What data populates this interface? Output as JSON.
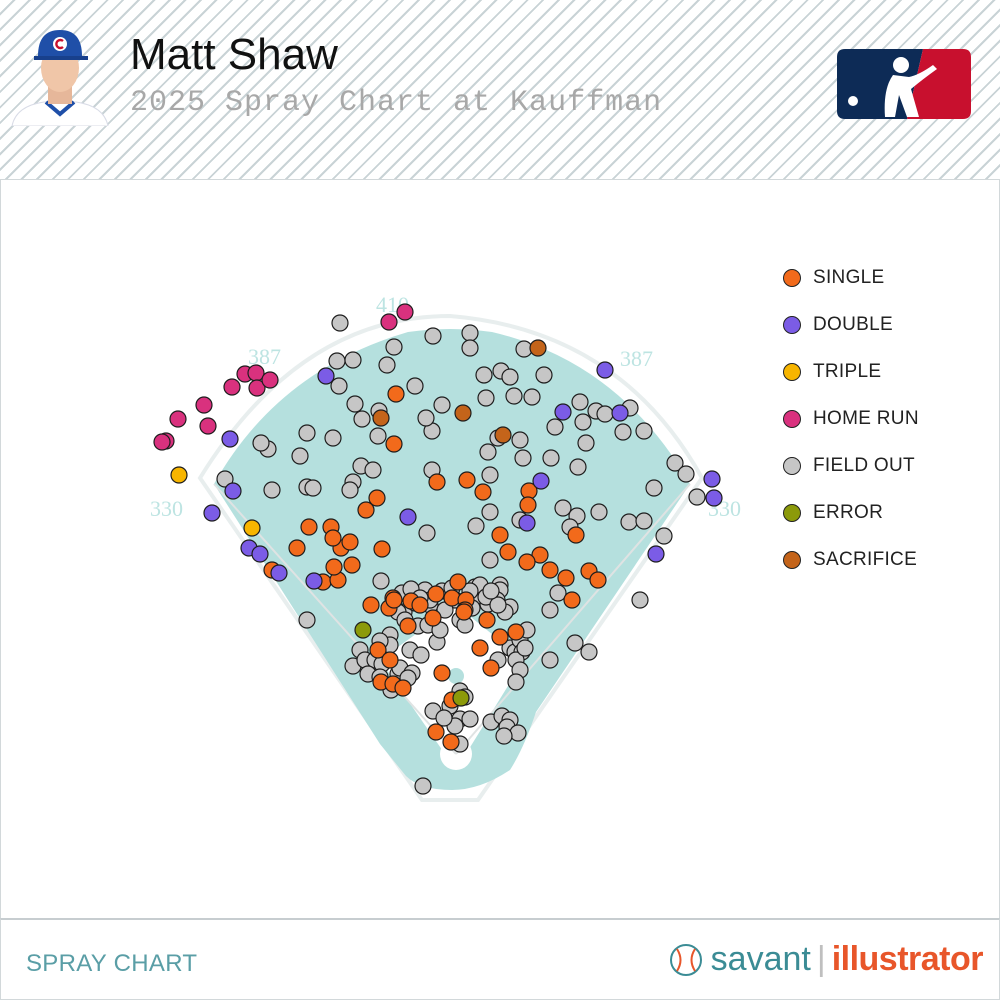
{
  "header": {
    "player_name": "Matt Shaw",
    "subtitle": "2025 Spray Chart at Kauffman"
  },
  "footer": {
    "label": "SPRAY CHART",
    "brand_left": "savant",
    "brand_right": "illustrator"
  },
  "chart_data": {
    "type": "scatter",
    "title": "Matt Shaw",
    "subtitle": "2025 Spray Chart at Kauffman",
    "field_distances": {
      "left_line": "330",
      "left_center": "387",
      "center": "410",
      "right_center": "387",
      "right_line": "330"
    },
    "legend_placement": "right",
    "colors": {
      "SINGLE": "#f26a1b",
      "DOUBLE": "#7b5ce6",
      "TRIPLE": "#f7b500",
      "HOME RUN": "#d9317e",
      "FIELD OUT": "#c6c6c6",
      "ERROR": "#8c9a0a",
      "SACRIFICE": "#c4641a",
      "field": "#b5e0de"
    },
    "legend": [
      "SINGLE",
      "DOUBLE",
      "TRIPLE",
      "HOME RUN",
      "FIELD OUT",
      "ERROR",
      "SACRIFICE"
    ],
    "points": {
      "SINGLE": [
        [
          297,
          548
        ],
        [
          309,
          527
        ],
        [
          331,
          527
        ],
        [
          341,
          548
        ],
        [
          333,
          538
        ],
        [
          350,
          542
        ],
        [
          323,
          582
        ],
        [
          338,
          580
        ],
        [
          334,
          567
        ],
        [
          352,
          565
        ],
        [
          382,
          549
        ],
        [
          366,
          510
        ],
        [
          377,
          498
        ],
        [
          396,
          394
        ],
        [
          394,
          444
        ],
        [
          437,
          482
        ],
        [
          467,
          480
        ],
        [
          483,
          492
        ],
        [
          529,
          491
        ],
        [
          528,
          505
        ],
        [
          500,
          535
        ],
        [
          508,
          552
        ],
        [
          540,
          555
        ],
        [
          550,
          570
        ],
        [
          527,
          562
        ],
        [
          566,
          578
        ],
        [
          576,
          535
        ],
        [
          589,
          571
        ],
        [
          598,
          580
        ],
        [
          572,
          600
        ],
        [
          458,
          582
        ],
        [
          436,
          594
        ],
        [
          393,
          598
        ],
        [
          389,
          608
        ],
        [
          411,
          601
        ],
        [
          452,
          598
        ],
        [
          466,
          600
        ],
        [
          465,
          610
        ],
        [
          487,
          620
        ],
        [
          516,
          632
        ],
        [
          500,
          637
        ],
        [
          480,
          648
        ],
        [
          491,
          668
        ],
        [
          464,
          612
        ],
        [
          433,
          618
        ],
        [
          442,
          673
        ],
        [
          408,
          626
        ],
        [
          378,
          650
        ],
        [
          390,
          660
        ],
        [
          381,
          682
        ],
        [
          393,
          684
        ],
        [
          403,
          688
        ],
        [
          452,
          700
        ],
        [
          436,
          732
        ],
        [
          451,
          742
        ],
        [
          371,
          605
        ],
        [
          272,
          570
        ],
        [
          394,
          600
        ],
        [
          420,
          605
        ]
      ],
      "DOUBLE": [
        [
          326,
          376
        ],
        [
          230,
          439
        ],
        [
          233,
          491
        ],
        [
          212,
          513
        ],
        [
          249,
          548
        ],
        [
          260,
          554
        ],
        [
          279,
          573
        ],
        [
          314,
          581
        ],
        [
          408,
          517
        ],
        [
          527,
          523
        ],
        [
          541,
          481
        ],
        [
          563,
          412
        ],
        [
          620,
          413
        ],
        [
          605,
          370
        ],
        [
          712,
          479
        ],
        [
          714,
          498
        ],
        [
          656,
          554
        ]
      ],
      "TRIPLE": [
        [
          179,
          475
        ],
        [
          252,
          528
        ]
      ],
      "HOME RUN": [
        [
          389,
          322
        ],
        [
          405,
          312
        ],
        [
          232,
          387
        ],
        [
          245,
          374
        ],
        [
          256,
          373
        ],
        [
          257,
          388
        ],
        [
          270,
          380
        ],
        [
          204,
          405
        ],
        [
          178,
          419
        ],
        [
          208,
          426
        ],
        [
          166,
          441
        ],
        [
          162,
          442
        ]
      ],
      "FIELD OUT": [
        [
          340,
          323
        ],
        [
          433,
          336
        ],
        [
          470,
          333
        ],
        [
          470,
          348
        ],
        [
          394,
          347
        ],
        [
          337,
          361
        ],
        [
          353,
          360
        ],
        [
          387,
          365
        ],
        [
          339,
          386
        ],
        [
          355,
          404
        ],
        [
          415,
          386
        ],
        [
          442,
          405
        ],
        [
          484,
          375
        ],
        [
          501,
          371
        ],
        [
          510,
          377
        ],
        [
          486,
          398
        ],
        [
          524,
          349
        ],
        [
          544,
          375
        ],
        [
          514,
          396
        ],
        [
          532,
          397
        ],
        [
          555,
          427
        ],
        [
          580,
          402
        ],
        [
          596,
          411
        ],
        [
          605,
          414
        ],
        [
          630,
          408
        ],
        [
          583,
          422
        ],
        [
          586,
          443
        ],
        [
          623,
          432
        ],
        [
          644,
          431
        ],
        [
          675,
          463
        ],
        [
          686,
          474
        ],
        [
          697,
          497
        ],
        [
          654,
          488
        ],
        [
          578,
          467
        ],
        [
          551,
          458
        ],
        [
          563,
          508
        ],
        [
          577,
          516
        ],
        [
          599,
          512
        ],
        [
          570,
          527
        ],
        [
          629,
          522
        ],
        [
          644,
          521
        ],
        [
          664,
          536
        ],
        [
          640,
          600
        ],
        [
          550,
          610
        ],
        [
          550,
          660
        ],
        [
          589,
          652
        ],
        [
          575,
          643
        ],
        [
          558,
          593
        ],
        [
          523,
          458
        ],
        [
          490,
          475
        ],
        [
          488,
          452
        ],
        [
          432,
          470
        ],
        [
          432,
          431
        ],
        [
          426,
          418
        ],
        [
          379,
          411
        ],
        [
          362,
          419
        ],
        [
          378,
          436
        ],
        [
          333,
          438
        ],
        [
          307,
          433
        ],
        [
          300,
          456
        ],
        [
          268,
          449
        ],
        [
          261,
          443
        ],
        [
          225,
          479
        ],
        [
          272,
          490
        ],
        [
          307,
          487
        ],
        [
          313,
          488
        ],
        [
          353,
          482
        ],
        [
          361,
          466
        ],
        [
          373,
          470
        ],
        [
          350,
          490
        ],
        [
          498,
          438
        ],
        [
          520,
          440
        ],
        [
          476,
          526
        ],
        [
          490,
          512
        ],
        [
          520,
          520
        ],
        [
          490,
          560
        ],
        [
          500,
          585
        ],
        [
          480,
          596
        ],
        [
          500,
          590
        ],
        [
          510,
          607
        ],
        [
          488,
          604
        ],
        [
          494,
          598
        ],
        [
          427,
          533
        ],
        [
          381,
          581
        ],
        [
          402,
          593
        ],
        [
          404,
          612
        ],
        [
          425,
          590
        ],
        [
          415,
          603
        ],
        [
          430,
          605
        ],
        [
          442,
          591
        ],
        [
          418,
          626
        ],
        [
          428,
          625
        ],
        [
          437,
          642
        ],
        [
          410,
          650
        ],
        [
          390,
          635
        ],
        [
          390,
          645
        ],
        [
          380,
          641
        ],
        [
          360,
          650
        ],
        [
          353,
          666
        ],
        [
          365,
          660
        ],
        [
          375,
          660
        ],
        [
          368,
          674
        ],
        [
          382,
          664
        ],
        [
          398,
          674
        ],
        [
          400,
          668
        ],
        [
          412,
          673
        ],
        [
          380,
          677
        ],
        [
          391,
          690
        ],
        [
          408,
          678
        ],
        [
          421,
          655
        ],
        [
          440,
          630
        ],
        [
          460,
          620
        ],
        [
          465,
          625
        ],
        [
          472,
          608
        ],
        [
          497,
          600
        ],
        [
          505,
          612
        ],
        [
          498,
          660
        ],
        [
          510,
          648
        ],
        [
          515,
          652
        ],
        [
          520,
          640
        ],
        [
          522,
          652
        ],
        [
          516,
          660
        ],
        [
          520,
          670
        ],
        [
          516,
          682
        ],
        [
          527,
          630
        ],
        [
          525,
          648
        ],
        [
          460,
          691
        ],
        [
          465,
          697
        ],
        [
          450,
          706
        ],
        [
          460,
          719
        ],
        [
          470,
          719
        ],
        [
          455,
          726
        ],
        [
          491,
          722
        ],
        [
          502,
          716
        ],
        [
          510,
          720
        ],
        [
          507,
          727
        ],
        [
          518,
          733
        ],
        [
          504,
          736
        ],
        [
          433,
          711
        ],
        [
          444,
          718
        ],
        [
          460,
          744
        ],
        [
          307,
          620
        ],
        [
          423,
          786
        ],
        [
          411,
          589
        ],
        [
          452,
          588
        ],
        [
          475,
          587
        ],
        [
          480,
          585
        ],
        [
          486,
          597
        ],
        [
          498,
          605
        ],
        [
          491,
          591
        ],
        [
          470,
          591
        ],
        [
          455,
          600
        ],
        [
          445,
          610
        ],
        [
          430,
          600
        ],
        [
          420,
          598
        ],
        [
          398,
          612
        ],
        [
          405,
          620
        ]
      ],
      "ERROR": [
        [
          363,
          630
        ],
        [
          461,
          698
        ]
      ],
      "SACRIFICE": [
        [
          538,
          348
        ],
        [
          381,
          418
        ],
        [
          463,
          413
        ],
        [
          503,
          435
        ]
      ]
    }
  },
  "legend_labels": [
    "SINGLE",
    "DOUBLE",
    "TRIPLE",
    "HOME RUN",
    "FIELD OUT",
    "ERROR",
    "SACRIFICE"
  ]
}
